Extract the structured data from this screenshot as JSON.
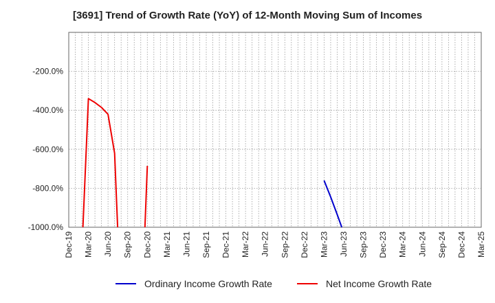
{
  "chart_data": {
    "type": "line",
    "title": "[3691]  Trend of Growth Rate (YoY) of 12-Month Moving Sum of Incomes",
    "xlabel": "",
    "ylabel": "",
    "x_ticks": [
      "Dec-19",
      "Mar-20",
      "Jun-20",
      "Sep-20",
      "Dec-20",
      "Mar-21",
      "Jun-21",
      "Sep-21",
      "Dec-21",
      "Mar-22",
      "Jun-22",
      "Sep-22",
      "Dec-22",
      "Mar-23",
      "Jun-23",
      "Sep-23",
      "Dec-23",
      "Mar-24",
      "Jun-24",
      "Sep-24",
      "Dec-24",
      "Mar-25"
    ],
    "y_ticks": [
      -200,
      -400,
      -600,
      -800,
      -1000
    ],
    "y_tick_labels": [
      "-200.0%",
      "-400.0%",
      "-600.0%",
      "-800.0%",
      "-1000.0%"
    ],
    "ylim": [
      -1000,
      0
    ],
    "grid": true,
    "legend_position": "bottom",
    "series": [
      {
        "name": "Ordinary Income Growth Rate",
        "color": "#0000cc",
        "points": [
          [
            "2023-03",
            -760
          ],
          [
            "2023-04",
            -845
          ],
          [
            "2023-05",
            -935
          ],
          [
            "2023-05-22",
            -1000
          ]
        ]
      },
      {
        "name": "Net Income Growth Rate",
        "color": "#ee0000",
        "segments": [
          [
            [
              "2020-02-06",
              -1000
            ],
            [
              "2020-03",
              -340
            ],
            [
              "2020-04",
              -360
            ],
            [
              "2020-05",
              -385
            ],
            [
              "2020-06",
              -420
            ],
            [
              "2020-07",
              -620
            ],
            [
              "2020-07-15",
              -1000
            ]
          ],
          [
            [
              "2020-11-20",
              -1000
            ],
            [
              "2020-12",
              -685
            ]
          ]
        ]
      }
    ]
  }
}
